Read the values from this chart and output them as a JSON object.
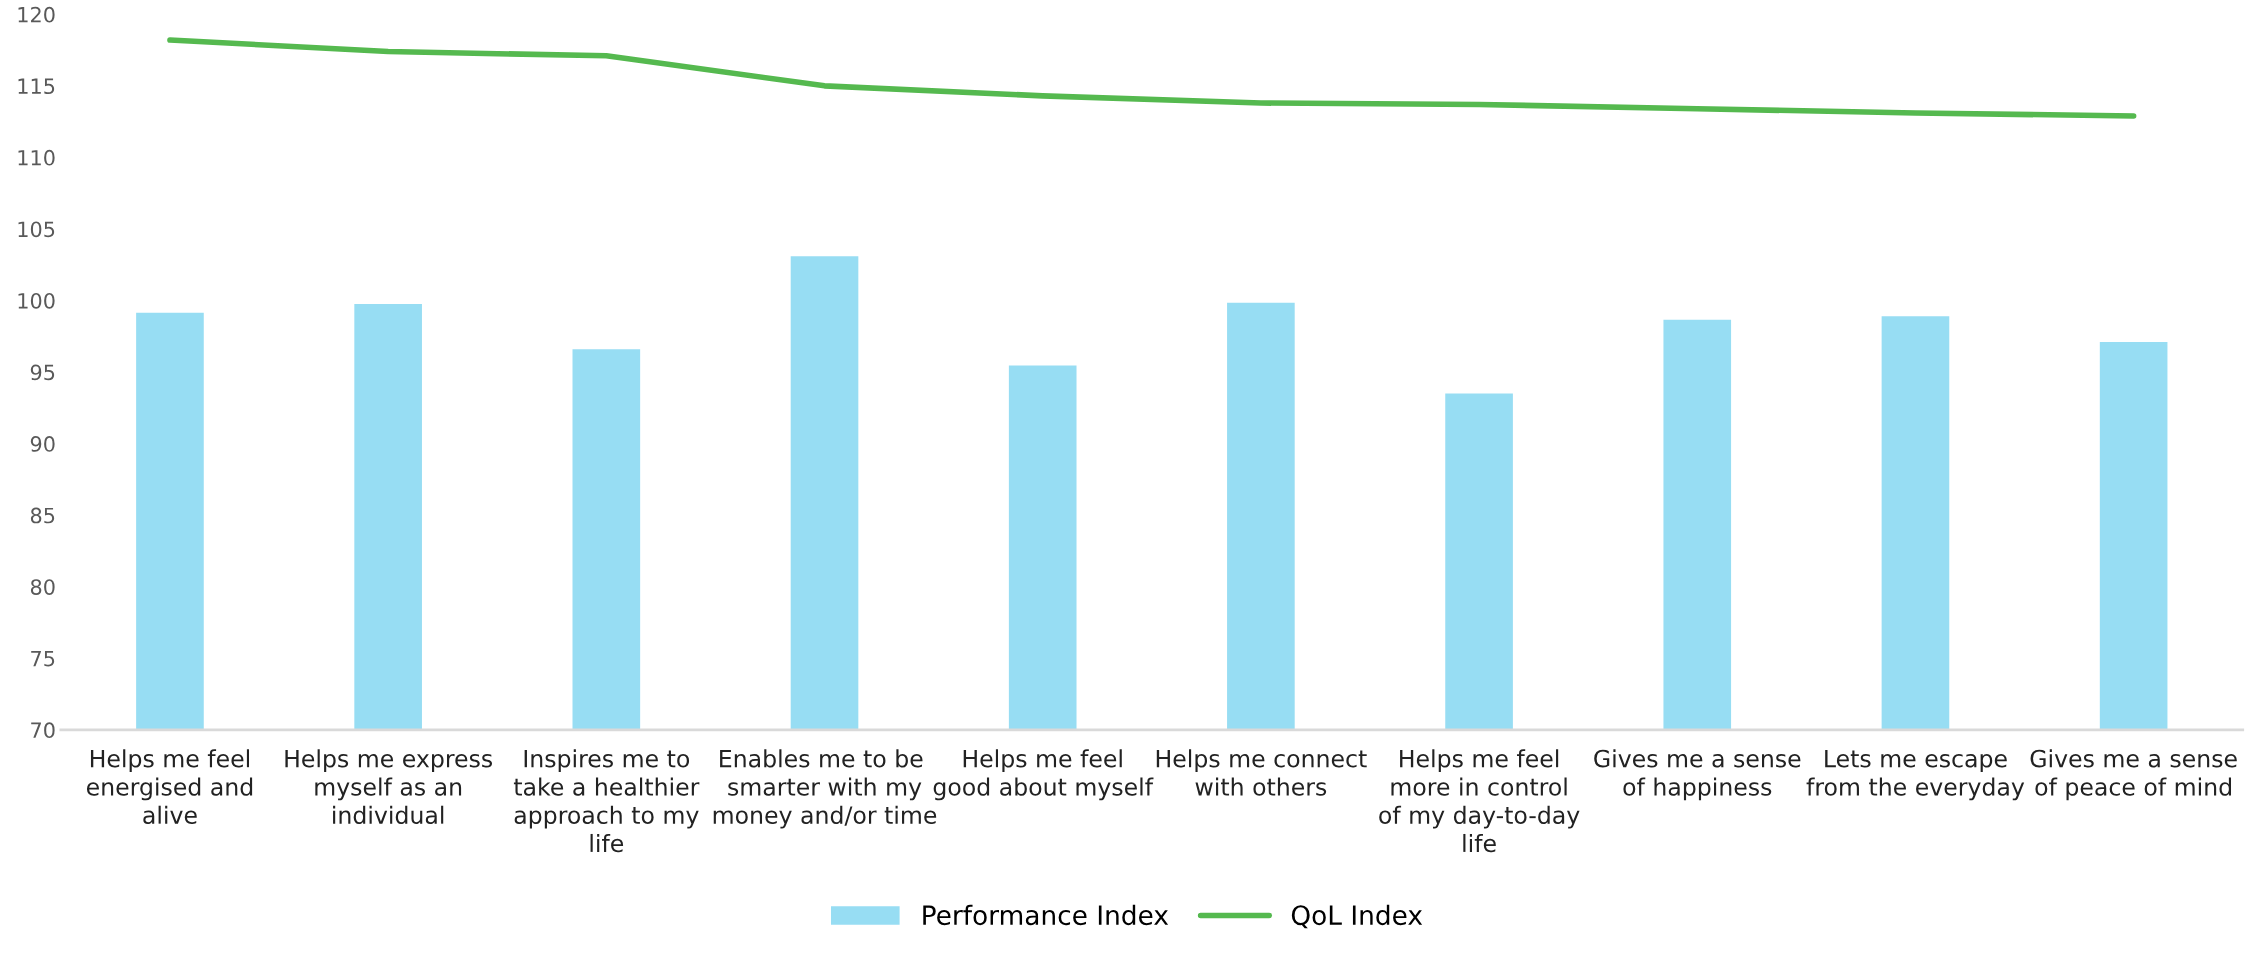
{
  "chart_data": {
    "type": "bar",
    "categories": [
      "Helps me feel energised and alive",
      "Helps me express myself as an individual",
      "Inspires me to take a healthier approach to my life",
      "Enables me to be  smarter with my money and/or time",
      "Helps me feel good about myself",
      "Helps me connect with others",
      "Helps me feel more in control of my day-to-day life",
      "Gives me a sense of happiness",
      "Lets me escape from the everyday",
      "Gives me a sense of peace of mind"
    ],
    "series": [
      {
        "name": "Performance Index",
        "color": "#97ddf3",
        "values": [
          99.15,
          99.75,
          96.6,
          103.1,
          95.45,
          99.85,
          93.5,
          98.65,
          98.9,
          97.1
        ]
      },
      {
        "name": "QoL Index",
        "type": "line",
        "color": "#55b94f",
        "values": [
          118.2,
          117.4,
          117.1,
          115.0,
          114.3,
          113.8,
          113.7,
          113.4,
          113.1,
          112.9
        ]
      }
    ],
    "ylim": [
      70,
      120
    ],
    "yticks": [
      70,
      75,
      80,
      85,
      90,
      95,
      100,
      105,
      110,
      115,
      120
    ],
    "grid": false,
    "legend": "bottom",
    "marker": "none",
    "line_style": "solid"
  }
}
